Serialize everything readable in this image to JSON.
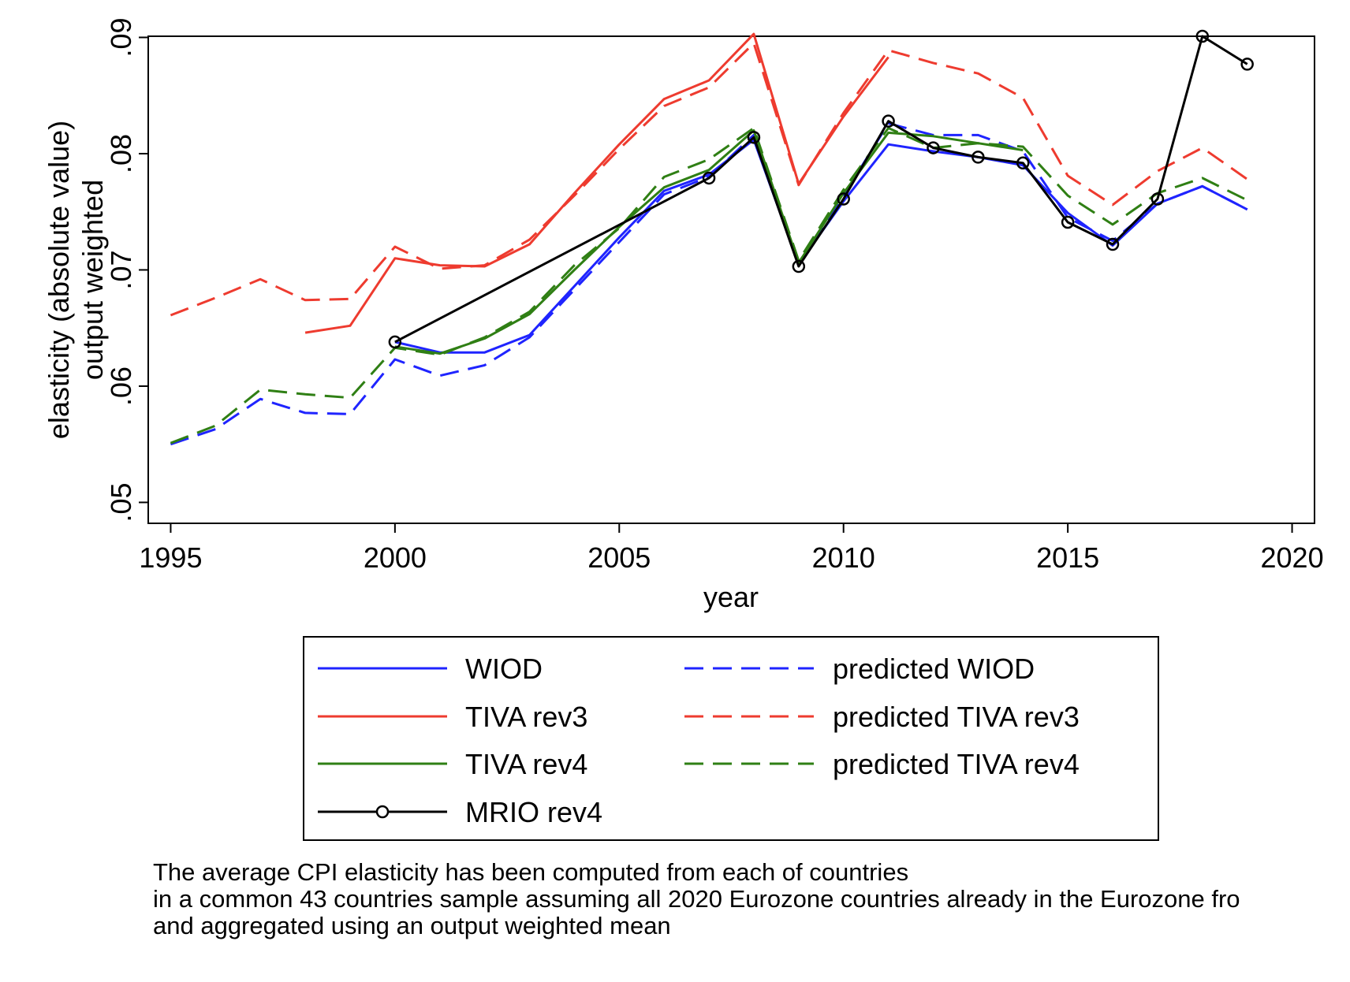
{
  "chart_data": {
    "type": "line",
    "ylabel_lines": [
      "elasticity (absolute value)",
      "output weighted"
    ],
    "xlabel": "year",
    "x_ticks": [
      1995,
      2000,
      2005,
      2010,
      2015,
      2020
    ],
    "y_ticks": [
      0.05,
      0.06,
      0.07,
      0.08,
      0.09
    ],
    "y_tick_labels": [
      ".05",
      ".06",
      ".07",
      ".08",
      ".09"
    ],
    "xlim": [
      1994.5,
      2020.5
    ],
    "ylim": [
      0.0482,
      0.0901
    ],
    "grid": false,
    "legend_position": "bottom",
    "series": [
      {
        "name": "WIOD",
        "color": "#1f24ff",
        "dash": false,
        "marker": false,
        "x": [
          2000,
          2001,
          2002,
          2003,
          2004,
          2005,
          2006,
          2007,
          2008,
          2009,
          2010,
          2011,
          2012,
          2013,
          2014,
          2015,
          2016,
          2017,
          2018,
          2019
        ],
        "y": [
          0.0638,
          0.0629,
          0.0629,
          0.0644,
          0.0686,
          0.0728,
          0.0768,
          0.0782,
          0.0812,
          0.0705,
          0.0759,
          0.0808,
          0.0802,
          0.0797,
          0.079,
          0.0749,
          0.0721,
          0.0757,
          0.0772,
          0.0752
        ]
      },
      {
        "name": "predicted WIOD",
        "color": "#1f24ff",
        "dash": true,
        "marker": false,
        "x": [
          1995,
          1996,
          1997,
          1998,
          1999,
          2000,
          2001,
          2002,
          2003,
          2004,
          2005,
          2006,
          2007,
          2008,
          2009,
          2010,
          2011,
          2012,
          2013,
          2014,
          2015,
          2016,
          2017,
          2018,
          2019
        ],
        "y": [
          0.055,
          0.0563,
          0.0589,
          0.0577,
          0.0576,
          0.0623,
          0.0609,
          0.0618,
          0.0642,
          0.0683,
          0.0724,
          0.0765,
          0.078,
          0.0816,
          0.0704,
          0.0764,
          0.0826,
          0.0816,
          0.0816,
          0.0802,
          0.0745,
          0.0725,
          0.0757,
          0.0772,
          0.0752
        ]
      },
      {
        "name": "TIVA rev3",
        "color": "#ee3b2f",
        "dash": false,
        "marker": false,
        "x": [
          1998,
          1999,
          2000,
          2001,
          2002,
          2003,
          2004,
          2005,
          2006,
          2007,
          2008,
          2009,
          2010,
          2011
        ],
        "y": [
          0.0646,
          0.0652,
          0.071,
          0.0704,
          0.0703,
          0.0722,
          0.0766,
          0.0808,
          0.0847,
          0.0863,
          0.0903,
          0.0774,
          0.0832,
          0.0883
        ]
      },
      {
        "name": "predicted TIVA rev3",
        "color": "#ee3b2f",
        "dash": true,
        "marker": false,
        "x": [
          1995,
          1996,
          1997,
          1998,
          1999,
          2000,
          2001,
          2002,
          2003,
          2004,
          2005,
          2006,
          2007,
          2008,
          2009,
          2010,
          2011,
          2012,
          2013,
          2014,
          2015,
          2016,
          2017,
          2018,
          2019
        ],
        "y": [
          0.0661,
          0.0676,
          0.0692,
          0.0674,
          0.0675,
          0.072,
          0.0701,
          0.0704,
          0.0726,
          0.0764,
          0.0804,
          0.0841,
          0.0857,
          0.0895,
          0.0773,
          0.0835,
          0.0889,
          0.0878,
          0.0869,
          0.0848,
          0.0781,
          0.0756,
          0.0785,
          0.0805,
          0.0778
        ]
      },
      {
        "name": "TIVA rev4",
        "color": "#2f7f14",
        "dash": false,
        "marker": false,
        "x": [
          2000,
          2001,
          2002,
          2003,
          2004,
          2005,
          2006,
          2007,
          2008,
          2009,
          2010,
          2011,
          2012,
          2013,
          2014
        ],
        "y": [
          0.0634,
          0.0628,
          0.0641,
          0.0662,
          0.07,
          0.0737,
          0.0771,
          0.0786,
          0.082,
          0.0706,
          0.0766,
          0.0818,
          0.0815,
          0.0809,
          0.0803
        ]
      },
      {
        "name": "predicted TIVA rev4",
        "color": "#2f7f14",
        "dash": true,
        "marker": false,
        "x": [
          1995,
          1996,
          1997,
          1998,
          1999,
          2000,
          2001,
          2002,
          2003,
          2004,
          2005,
          2006,
          2007,
          2008,
          2009,
          2010,
          2011,
          2012,
          2013,
          2014,
          2015,
          2016,
          2017,
          2018,
          2019
        ],
        "y": [
          0.0551,
          0.0566,
          0.0597,
          0.0593,
          0.059,
          0.0633,
          0.0627,
          0.0642,
          0.0664,
          0.0704,
          0.0736,
          0.078,
          0.0795,
          0.0822,
          0.0708,
          0.0769,
          0.0822,
          0.0805,
          0.0809,
          0.0806,
          0.0764,
          0.0739,
          0.0766,
          0.0779,
          0.076
        ]
      },
      {
        "name": "MRIO rev4",
        "color": "#000000",
        "dash": false,
        "marker": true,
        "x": [
          2000,
          2007,
          2008,
          2009,
          2010,
          2011,
          2012,
          2013,
          2014,
          2015,
          2016,
          2017,
          2018,
          2019
        ],
        "y": [
          0.0638,
          0.0779,
          0.0814,
          0.0703,
          0.0761,
          0.0828,
          0.0805,
          0.0797,
          0.0792,
          0.0741,
          0.0722,
          0.0761,
          0.0901,
          0.0877
        ]
      }
    ]
  },
  "note_lines": [
    "The average CPI elasticity has been computed from each of countries",
    "in a common 43 countries sample assuming all 2020 Eurozone countries already in the Eurozone fro",
    "and aggregated using an output weighted mean"
  ]
}
